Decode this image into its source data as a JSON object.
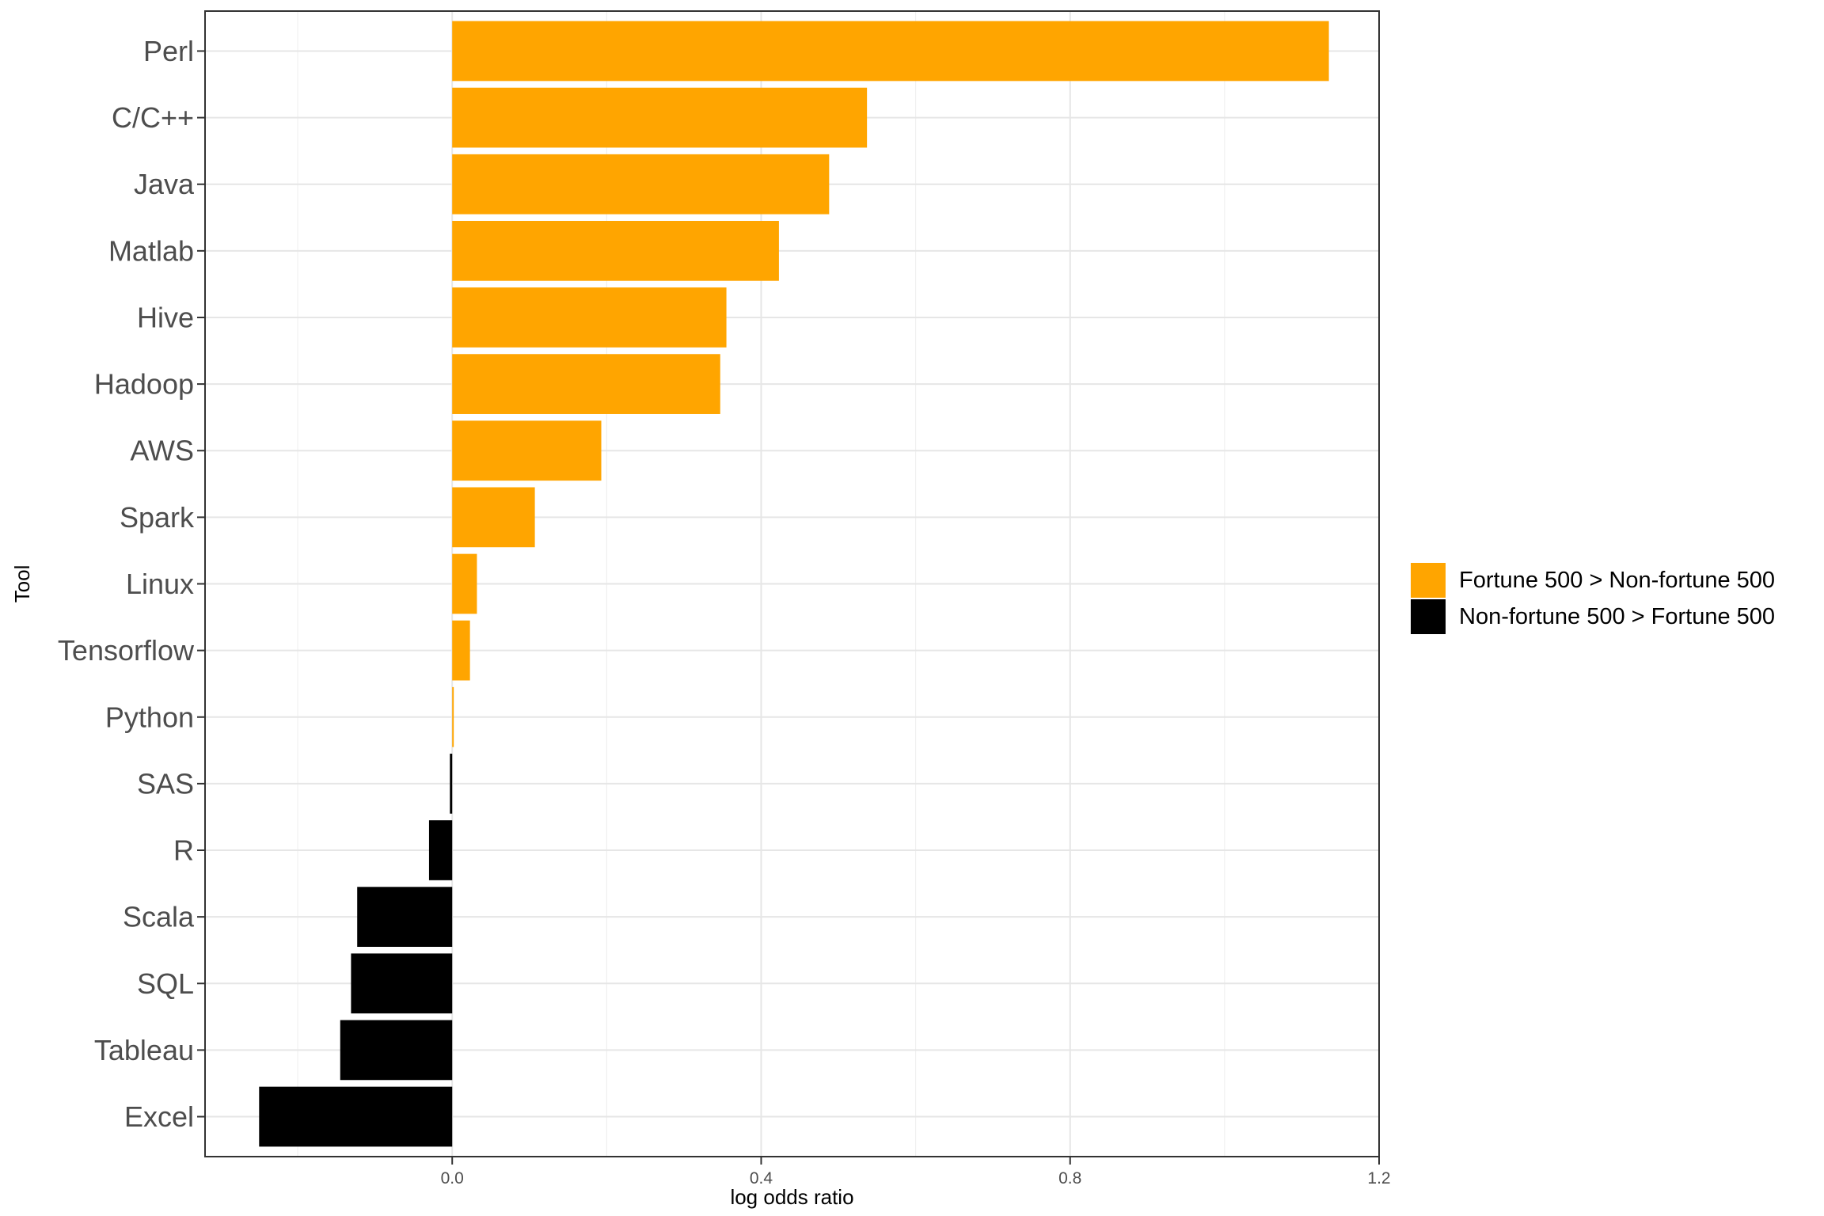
{
  "chart_data": {
    "type": "bar",
    "orientation": "horizontal",
    "xlabel": "log odds ratio",
    "ylabel": "Tool",
    "xlim": [
      -0.32,
      1.2
    ],
    "xticks": [
      0.0,
      0.4,
      0.8,
      1.2
    ],
    "xtick_labels": [
      "0.0",
      "0.4",
      "0.8",
      "1.2"
    ],
    "grid": true,
    "legend_position": "right",
    "categories": [
      "Perl",
      "C/C++",
      "Java",
      "Matlab",
      "Hive",
      "Hadoop",
      "AWS",
      "Spark",
      "Linux",
      "Tensorflow",
      "Python",
      "SAS",
      "R",
      "Scala",
      "SQL",
      "Tableau",
      "Excel"
    ],
    "values": [
      1.135,
      0.537,
      0.488,
      0.423,
      0.355,
      0.347,
      0.193,
      0.107,
      0.032,
      0.023,
      0.002,
      -0.003,
      -0.03,
      -0.123,
      -0.131,
      -0.145,
      -0.25
    ],
    "groups": [
      "Fortune 500 > Non-fortune 500",
      "Fortune 500 > Non-fortune 500",
      "Fortune 500 > Non-fortune 500",
      "Fortune 500 > Non-fortune 500",
      "Fortune 500 > Non-fortune 500",
      "Fortune 500 > Non-fortune 500",
      "Fortune 500 > Non-fortune 500",
      "Fortune 500 > Non-fortune 500",
      "Fortune 500 > Non-fortune 500",
      "Fortune 500 > Non-fortune 500",
      "Fortune 500 > Non-fortune 500",
      "Non-fortune 500 > Fortune 500",
      "Non-fortune 500 > Fortune 500",
      "Non-fortune 500 > Fortune 500",
      "Non-fortune 500 > Fortune 500",
      "Non-fortune 500 > Fortune 500",
      "Non-fortune 500 > Fortune 500"
    ],
    "legend": [
      {
        "name": "Fortune 500 > Non-fortune 500",
        "color": "#FFA500"
      },
      {
        "name": "Non-fortune 500 > Fortune 500",
        "color": "#000000"
      }
    ]
  }
}
